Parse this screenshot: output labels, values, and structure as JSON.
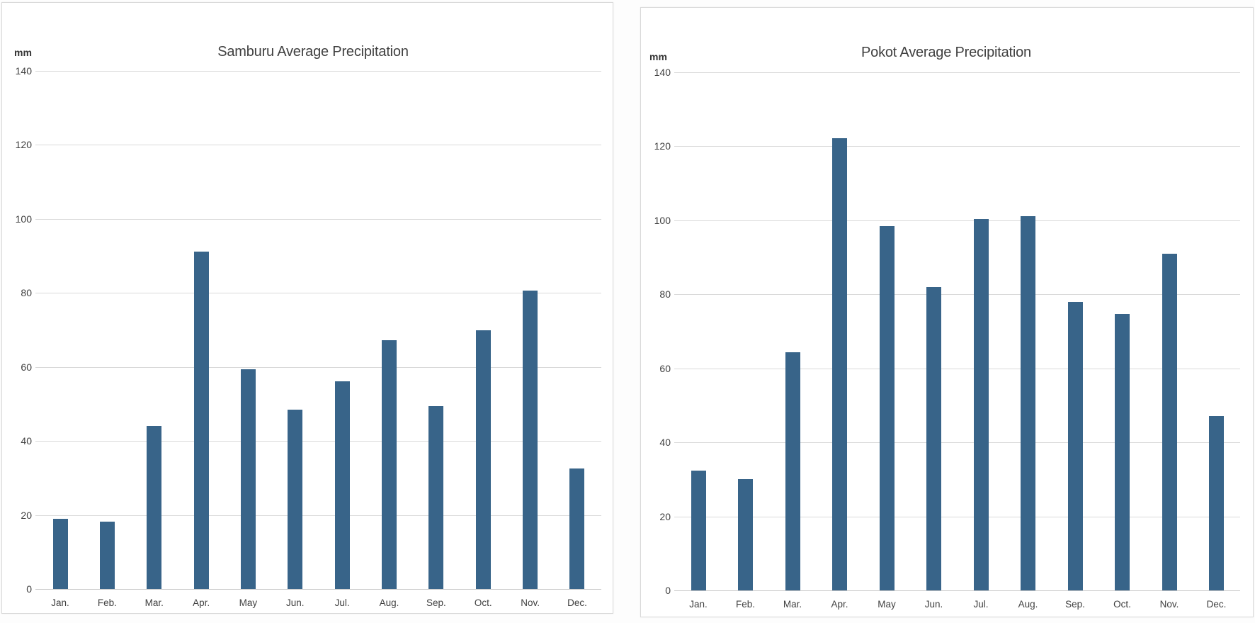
{
  "page": {
    "background_color": "#fdfdfd",
    "card_border_color": "#d9d9d9",
    "gridline_color": "#d9d9d9",
    "bar_color": "#386489",
    "text_color": "#404040"
  },
  "chart_data": [
    {
      "type": "bar",
      "title": "Samburu Average Precipitation",
      "ylabel": "mm",
      "xlabel": "",
      "categories": [
        "Jan.",
        "Feb.",
        "Mar.",
        "Apr.",
        "May",
        "Jun.",
        "Jul.",
        "Aug.",
        "Sep.",
        "Oct.",
        "Nov.",
        "Dec."
      ],
      "values": [
        19,
        18.2,
        44,
        91.2,
        59.4,
        48.4,
        56.1,
        67.2,
        49.4,
        69.9,
        80.6,
        32.5
      ],
      "ylim": [
        0,
        140
      ],
      "y_ticks": [
        0,
        20,
        40,
        60,
        80,
        100,
        120,
        140
      ],
      "grid": "horizontal",
      "legend": "none",
      "bar_color": "#386489"
    },
    {
      "type": "bar",
      "title": "Pokot Average Precipitation",
      "ylabel": "mm",
      "xlabel": "",
      "categories": [
        "Jan.",
        "Feb.",
        "Mar.",
        "Apr.",
        "May",
        "Jun.",
        "Jul.",
        "Aug.",
        "Sep.",
        "Oct.",
        "Nov.",
        "Dec."
      ],
      "values": [
        32.4,
        30,
        64.4,
        122.2,
        98.4,
        81.9,
        100.4,
        101.1,
        77.9,
        74.6,
        91,
        47.1
      ],
      "ylim": [
        0,
        140
      ],
      "y_ticks": [
        0,
        20,
        40,
        60,
        80,
        100,
        120,
        140
      ],
      "grid": "horizontal",
      "legend": "none",
      "bar_color": "#386489"
    }
  ]
}
